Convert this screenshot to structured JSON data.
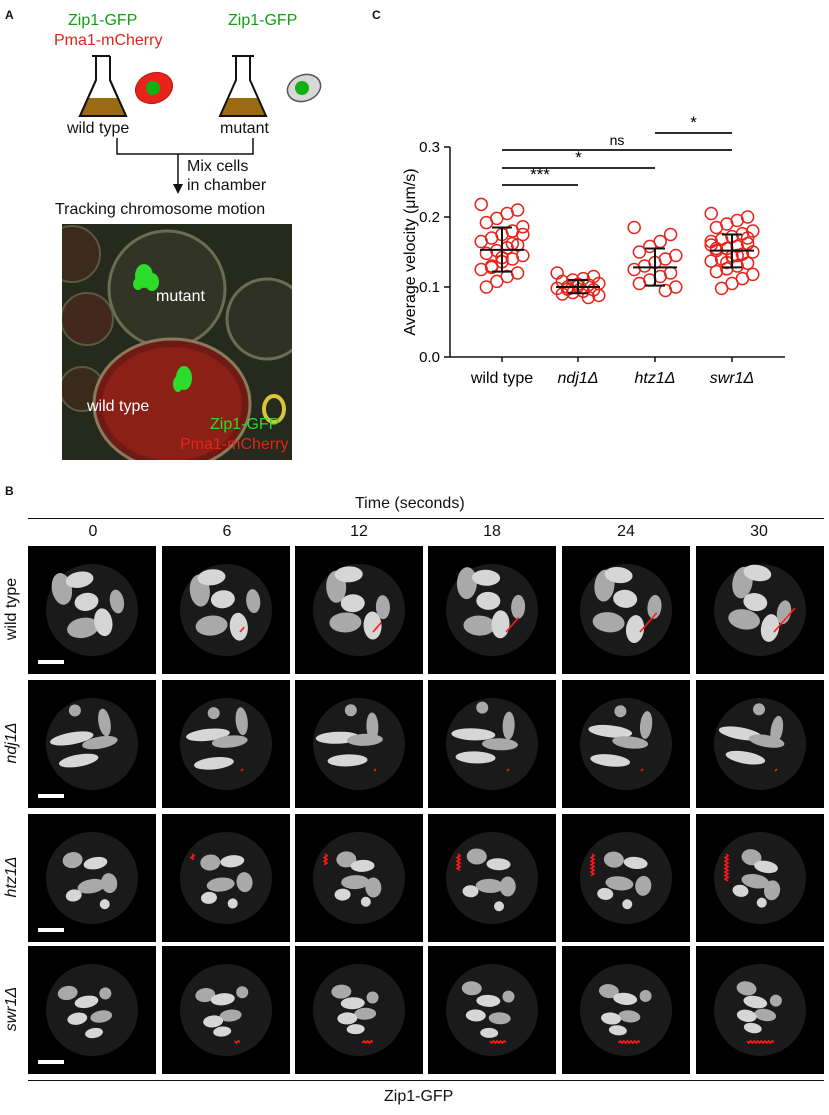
{
  "panelA": {
    "letter": "A",
    "wt_label1": "Zip1-GFP",
    "wt_label2": "Pma1-mCherry",
    "mut_label1": "Zip1-GFP",
    "wt_flask": "wild type",
    "mut_flask": "mutant",
    "mix1": "Mix cells",
    "mix2": "in chamber",
    "tracking": "Tracking chromosome motion",
    "img_mutant": "mutant",
    "img_wt": "wild type",
    "img_zip": "Zip1-GFP",
    "img_pma": "Pma1-mCherry"
  },
  "panelB": {
    "letter": "B",
    "time_header": "Time (seconds)",
    "times": [
      "0",
      "6",
      "12",
      "18",
      "24",
      "30"
    ],
    "rows": [
      "wild type",
      "ndj1Δ",
      "htz1Δ",
      "swr1Δ"
    ],
    "footer": "Zip1-GFP"
  },
  "chart_data": {
    "letter": "C",
    "type": "scatter",
    "ylabel": "Average velocity (μm/s)",
    "ylim": [
      0,
      0.3
    ],
    "yticks": [
      "0.0",
      "0.1",
      "0.2",
      "0.3"
    ],
    "categories": [
      "wild type",
      "ndj1Δ",
      "htz1Δ",
      "swr1Δ"
    ],
    "italic_categories": [
      false,
      true,
      true,
      true
    ],
    "summary": [
      {
        "mean": 0.153,
        "sd_low": 0.122,
        "sd_high": 0.185
      },
      {
        "mean": 0.1,
        "sd_low": 0.091,
        "sd_high": 0.11
      },
      {
        "mean": 0.128,
        "sd_low": 0.102,
        "sd_high": 0.155
      },
      {
        "mean": 0.152,
        "sd_low": 0.128,
        "sd_high": 0.175
      }
    ],
    "points": [
      [
        0.218,
        0.21,
        0.205,
        0.198,
        0.192,
        0.186,
        0.18,
        0.175,
        0.17,
        0.165,
        0.16,
        0.156,
        0.152,
        0.148,
        0.145,
        0.14,
        0.136,
        0.13,
        0.125,
        0.12,
        0.115,
        0.108,
        0.1,
        0.175,
        0.162,
        0.142,
        0.128
      ],
      [
        0.12,
        0.115,
        0.112,
        0.11,
        0.108,
        0.105,
        0.103,
        0.101,
        0.1,
        0.098,
        0.096,
        0.094,
        0.092,
        0.09,
        0.088,
        0.085,
        0.104,
        0.097
      ],
      [
        0.185,
        0.175,
        0.165,
        0.158,
        0.15,
        0.145,
        0.14,
        0.135,
        0.13,
        0.125,
        0.12,
        0.115,
        0.11,
        0.105,
        0.1,
        0.095
      ],
      [
        0.205,
        0.2,
        0.195,
        0.19,
        0.185,
        0.18,
        0.176,
        0.172,
        0.168,
        0.165,
        0.162,
        0.158,
        0.155,
        0.152,
        0.15,
        0.147,
        0.144,
        0.14,
        0.137,
        0.134,
        0.13,
        0.126,
        0.122,
        0.118,
        0.112,
        0.105,
        0.098,
        0.16,
        0.17,
        0.145,
        0.135,
        0.155
      ]
    ],
    "significance": [
      {
        "from": 0,
        "to": 1,
        "label": "***"
      },
      {
        "from": 0,
        "to": 2,
        "label": "*"
      },
      {
        "from": 0,
        "to": 3,
        "label": "ns"
      },
      {
        "from": 2,
        "to": 3,
        "label": "*"
      }
    ],
    "marker_color": "#e8231b"
  }
}
